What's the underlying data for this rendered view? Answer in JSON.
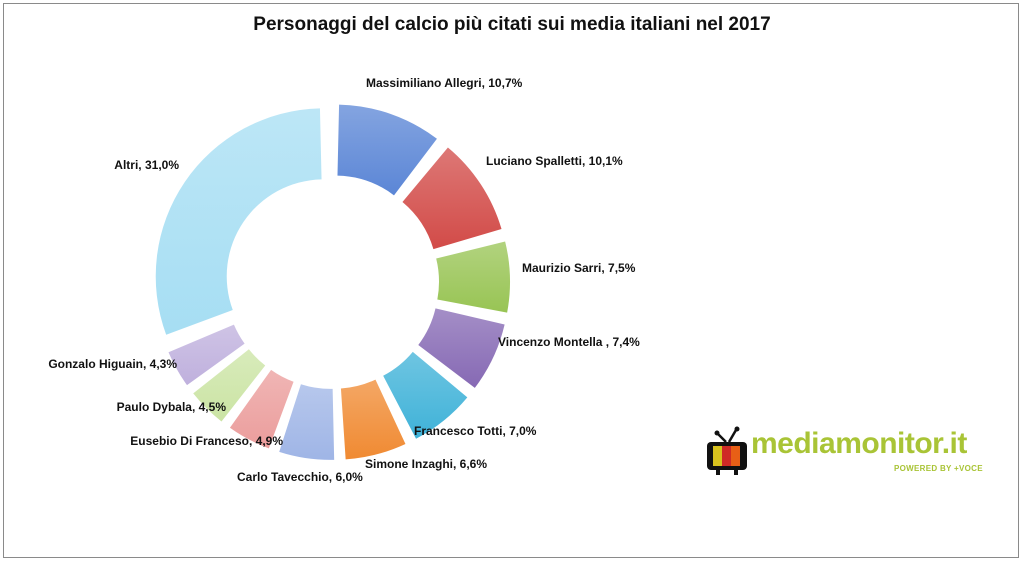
{
  "chart_data": {
    "type": "pie",
    "variant": "exploded-donut",
    "title": "Personaggi del calcio più citati sui media italiani nel 2017",
    "slices": [
      {
        "label": "Massimiliano Allegri, 10,7%",
        "name": "Massimiliano Allegri",
        "value": 10.7,
        "color": "#5b86d6"
      },
      {
        "label": "Luciano Spalletti, 10,1%",
        "name": "Luciano Spalletti",
        "value": 10.1,
        "color": "#d24b48"
      },
      {
        "label": "Maurizio Sarri, 7,5%",
        "name": "Maurizio Sarri",
        "value": 7.5,
        "color": "#98c454"
      },
      {
        "label": "Vincenzo Montella , 7,4%",
        "name": "Vincenzo Montella",
        "value": 7.4,
        "color": "#8669b4"
      },
      {
        "label": "Francesco Totti, 7,0%",
        "name": "Francesco Totti",
        "value": 7.0,
        "color": "#3fb2d8"
      },
      {
        "label": "Simone Inzaghi, 6,6%",
        "name": "Simone Inzaghi",
        "value": 6.6,
        "color": "#f08a32"
      },
      {
        "label": "Carlo Tavecchio, 6,0%",
        "name": "Carlo Tavecchio",
        "value": 6.0,
        "color": "#9fb5e6"
      },
      {
        "label": "Eusebio Di Franceso, 4,9%",
        "name": "Eusebio Di Franceso",
        "value": 4.9,
        "color": "#eb9d9c"
      },
      {
        "label": "Paulo Dybala, 4,5%",
        "name": "Paulo Dybala",
        "value": 4.5,
        "color": "#cbe4a4"
      },
      {
        "label": "Gonzalo Higuain, 4,3%",
        "name": "Gonzalo Higuain",
        "value": 4.3,
        "color": "#bfb0dd"
      },
      {
        "label": "Altri, 31,0%",
        "name": "Altri",
        "value": 31.0,
        "color": "#a6def3"
      }
    ],
    "legend": "none"
  },
  "logo": {
    "brand_text": "mediamonitor.it",
    "tagline": "POWERED BY +VOCE",
    "brand_color": "#a9c436"
  }
}
